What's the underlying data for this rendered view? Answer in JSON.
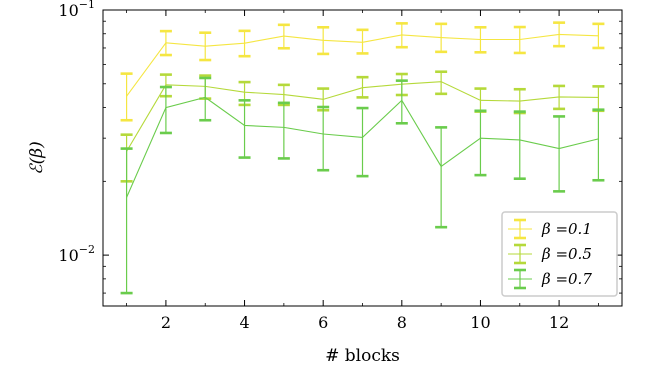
{
  "chart_data": {
    "type": "line",
    "xlabel": "# blocks",
    "ylabel": "ℰ(β)",
    "xscale": "linear",
    "yscale": "log",
    "xlim": [
      0.4,
      13.6
    ],
    "ylim": [
      0.0062,
      0.1
    ],
    "xticks": [
      2,
      4,
      6,
      8,
      10,
      12
    ],
    "xtick_labels": [
      "2",
      "4",
      "6",
      "8",
      "10",
      "12"
    ],
    "yticks": [
      {
        "value": 0.01,
        "base": "10",
        "exp": "−2"
      },
      {
        "value": 0.1,
        "base": "10",
        "exp": "−1"
      }
    ],
    "grid": false,
    "legend_position": "lower right",
    "x": [
      1,
      2,
      3,
      4,
      5,
      6,
      7,
      8,
      9,
      10,
      11,
      12,
      13
    ],
    "series": [
      {
        "name": "β =0.1",
        "color": "#f5e642",
        "values": [
          0.0445,
          0.0735,
          0.0712,
          0.0732,
          0.0783,
          0.0752,
          0.0738,
          0.0791,
          0.0772,
          0.0758,
          0.0758,
          0.0795,
          0.0785
        ],
        "err_low": [
          0.0355,
          0.0655,
          0.0625,
          0.0648,
          0.0698,
          0.0662,
          0.0665,
          0.0705,
          0.0675,
          0.0672,
          0.0668,
          0.0712,
          0.07
        ],
        "err_high": [
          0.055,
          0.082,
          0.0808,
          0.0822,
          0.087,
          0.085,
          0.083,
          0.0882,
          0.0878,
          0.085,
          0.0852,
          0.0888,
          0.0878
        ]
      },
      {
        "name": "β =0.5",
        "color": "#b5d93a",
        "values": [
          0.0265,
          0.0495,
          0.0488,
          0.0462,
          0.0452,
          0.0432,
          0.0482,
          0.0498,
          0.051,
          0.0428,
          0.0425,
          0.0442,
          0.044
        ],
        "err_low": [
          0.02,
          0.0445,
          0.0435,
          0.041,
          0.041,
          0.039,
          0.044,
          0.045,
          0.0455,
          0.0385,
          0.038,
          0.0395,
          0.0388
        ],
        "err_high": [
          0.031,
          0.0545,
          0.054,
          0.0508,
          0.0495,
          0.0478,
          0.0532,
          0.0548,
          0.056,
          0.0478,
          0.0475,
          0.049,
          0.0488
        ]
      },
      {
        "name": "β =0.7",
        "color": "#6acc4c",
        "values": [
          0.0172,
          0.04,
          0.044,
          0.0338,
          0.0332,
          0.0312,
          0.0302,
          0.0428,
          0.023,
          0.03,
          0.0295,
          0.0272,
          0.0298
        ],
        "err_low": [
          0.007,
          0.0315,
          0.0355,
          0.025,
          0.0248,
          0.0222,
          0.021,
          0.0345,
          0.013,
          0.0212,
          0.0205,
          0.0182,
          0.0202
        ],
        "err_high": [
          0.0272,
          0.0485,
          0.0528,
          0.0428,
          0.0418,
          0.0402,
          0.0398,
          0.0515,
          0.0332,
          0.0388,
          0.0385,
          0.0368,
          0.0392
        ]
      }
    ]
  }
}
